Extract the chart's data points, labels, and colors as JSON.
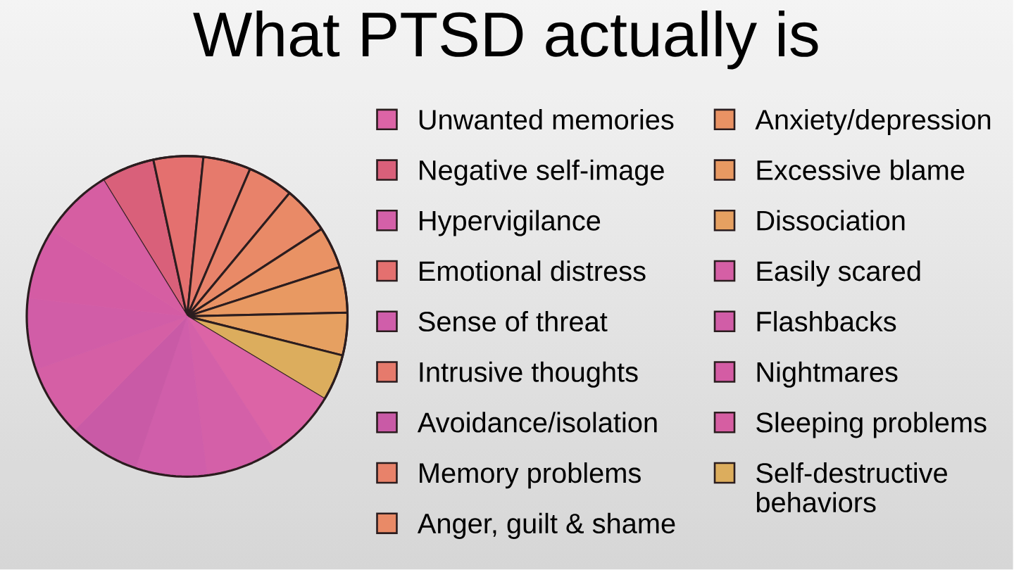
{
  "chart_data": {
    "type": "pie",
    "title": "What PTSD actually is",
    "categories": [
      "Negative self-image",
      "Emotional distress",
      "Intrusive thoughts",
      "Memory problems",
      "Anger, guilt & shame",
      "Anxiety/depression",
      "Excessive blame",
      "Dissociation",
      "Self-destructive behaviors",
      "Unwanted memories",
      "Hypervigilance",
      "Sense of threat",
      "Avoidance/isolation",
      "Easily scared",
      "Flashbacks",
      "Nightmares",
      "Sleeping problems"
    ],
    "values": [
      5.4,
      5.0,
      4.8,
      4.6,
      4.8,
      4.2,
      4.6,
      4.3,
      4.7,
      7.2,
      7.2,
      7.2,
      7.2,
      7.2,
      7.2,
      7.2,
      7.2
    ],
    "colors": [
      "#d9607a",
      "#e4706f",
      "#e67a6c",
      "#e8826a",
      "#e98a67",
      "#e99264",
      "#e89962",
      "#e6a061",
      "#dcad5d",
      "#dc64a6",
      "#d460a8",
      "#d05eaa",
      "#c95aa6",
      "#d55fa5",
      "#d15da7",
      "#d45ca4",
      "#d65ea2"
    ],
    "legend": "right"
  }
}
